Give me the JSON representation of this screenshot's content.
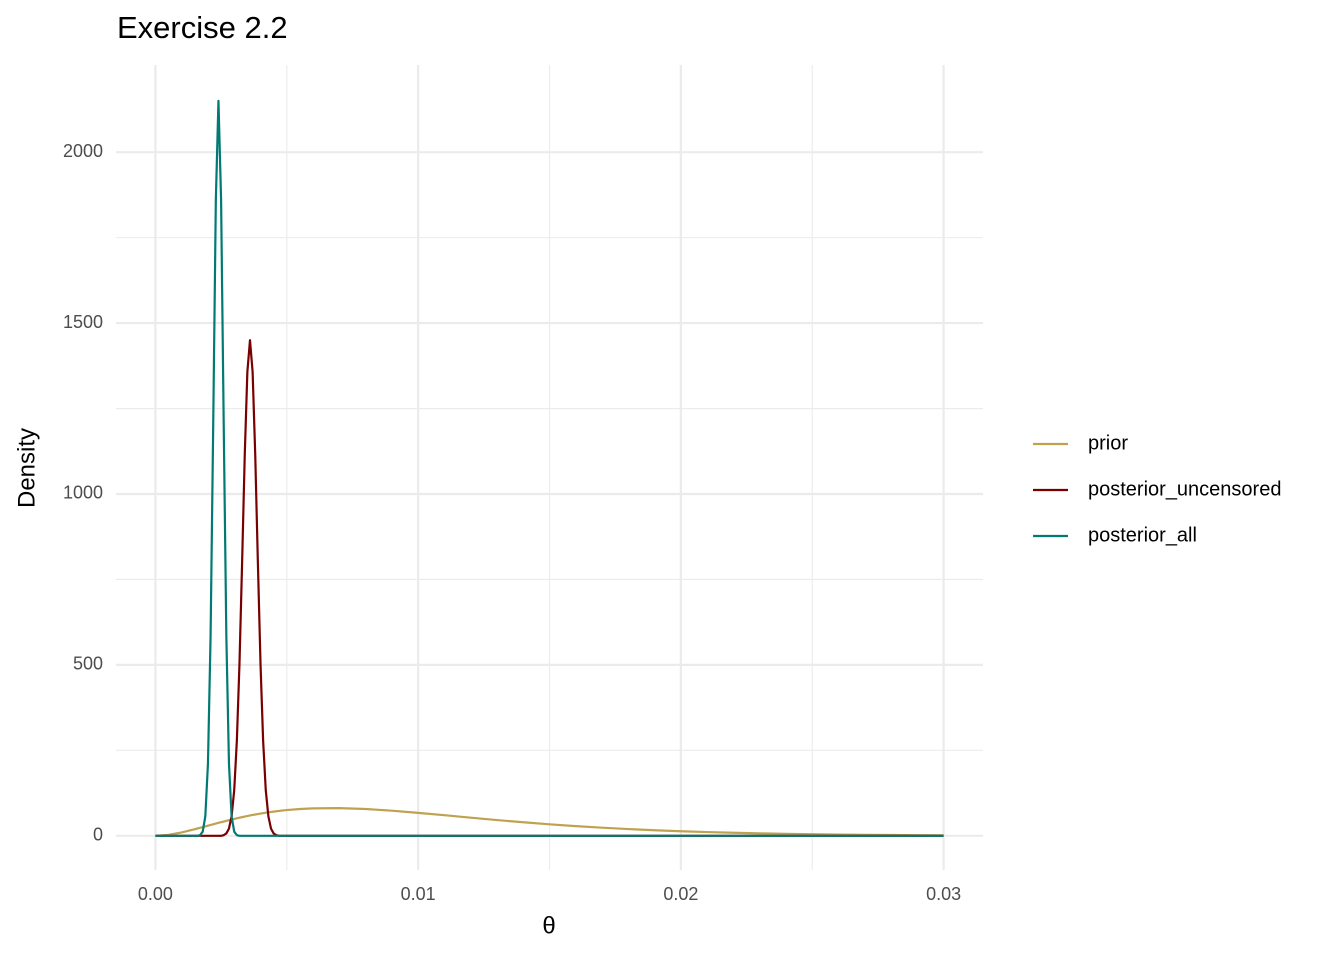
{
  "chart_data": {
    "type": "line",
    "title": "Exercise 2.2",
    "x_label": "θ",
    "y_label": "Density",
    "x": [
      0,
      0.0005,
      0.001,
      0.0015,
      0.0016,
      0.0017,
      0.0018,
      0.0019,
      0.002,
      0.0021,
      0.0022,
      0.0023,
      0.0024,
      0.0025,
      0.0026,
      0.0027,
      0.0028,
      0.0029,
      0.003,
      0.0031,
      0.0032,
      0.0033,
      0.0034,
      0.0035,
      0.0036,
      0.0037,
      0.0038,
      0.0039,
      0.004,
      0.0041,
      0.0042,
      0.0043,
      0.0044,
      0.0045,
      0.0046,
      0.0047,
      0.0048,
      0.0049,
      0.005,
      0.0055,
      0.006,
      0.007,
      0.008,
      0.009,
      0.01,
      0.011,
      0.012,
      0.013,
      0.014,
      0.015,
      0.016,
      0.017,
      0.018,
      0.019,
      0.02,
      0.021,
      0.022,
      0.023,
      0.024,
      0.025,
      0.026,
      0.027,
      0.028,
      0.029,
      0.03
    ],
    "series": [
      {
        "name": "prior",
        "color": "#bfa24f",
        "values": [
          0,
          2.9,
          10.0,
          19.4,
          21.4,
          23.4,
          25.5,
          27.6,
          29.6,
          31.7,
          33.8,
          35.8,
          37.9,
          39.8,
          41.8,
          43.8,
          45.7,
          47.6,
          49.4,
          51.2,
          52.9,
          54.7,
          56.3,
          57.9,
          59.5,
          61.0,
          62.4,
          63.7,
          65.0,
          66.3,
          67.6,
          68.7,
          69.8,
          70.8,
          71.9,
          72.8,
          73.7,
          74.6,
          75.3,
          78.4,
          80.3,
          80.9,
          78.4,
          73.5,
          67.2,
          60.3,
          53.1,
          46.1,
          39.7,
          33.7,
          28.4,
          23.8,
          19.8,
          16.3,
          13.4,
          11.0,
          8.9,
          7.2,
          5.8,
          4.7,
          3.7,
          3.0,
          2.4,
          1.9,
          1.5
        ]
      },
      {
        "name": "posterior_uncensored",
        "color": "#7a0000",
        "values": [
          0,
          0,
          0,
          0,
          0,
          0,
          0,
          0,
          0,
          0,
          0,
          0,
          0,
          0,
          2,
          7,
          21,
          57,
          134,
          278,
          504,
          800,
          1113,
          1357,
          1450,
          1357,
          1113,
          800,
          504,
          278,
          134,
          57,
          21,
          7,
          2,
          0,
          0,
          0,
          0,
          0,
          0,
          0,
          0,
          0,
          0,
          0,
          0,
          0,
          0,
          0,
          0,
          0,
          0,
          0,
          0,
          0,
          0,
          0,
          0,
          0,
          0,
          0,
          0,
          0,
          0
        ]
      },
      {
        "name": "posterior_all",
        "color": "#007a73",
        "values": [
          0,
          0,
          0,
          0,
          0,
          2,
          12,
          57,
          211,
          583,
          1202,
          1860,
          2150,
          1860,
          1202,
          583,
          211,
          57,
          12,
          2,
          0,
          0,
          0,
          0,
          0,
          0,
          0,
          0,
          0,
          0,
          0,
          0,
          0,
          0,
          0,
          0,
          0,
          0,
          0,
          0,
          0,
          0,
          0,
          0,
          0,
          0,
          0,
          0,
          0,
          0,
          0,
          0,
          0,
          0,
          0,
          0,
          0,
          0,
          0,
          0,
          0,
          0,
          0,
          0,
          0
        ]
      }
    ],
    "xlim": [
      -0.0015,
      0.0315
    ],
    "ylim": [
      -100,
      2255
    ],
    "xticks": [
      {
        "value": 0,
        "label": "0.00"
      },
      0.01,
      0.02,
      0.03
    ],
    "yticks": [
      0,
      500,
      1000,
      1500,
      2000
    ],
    "grid": true,
    "legend": "right"
  }
}
